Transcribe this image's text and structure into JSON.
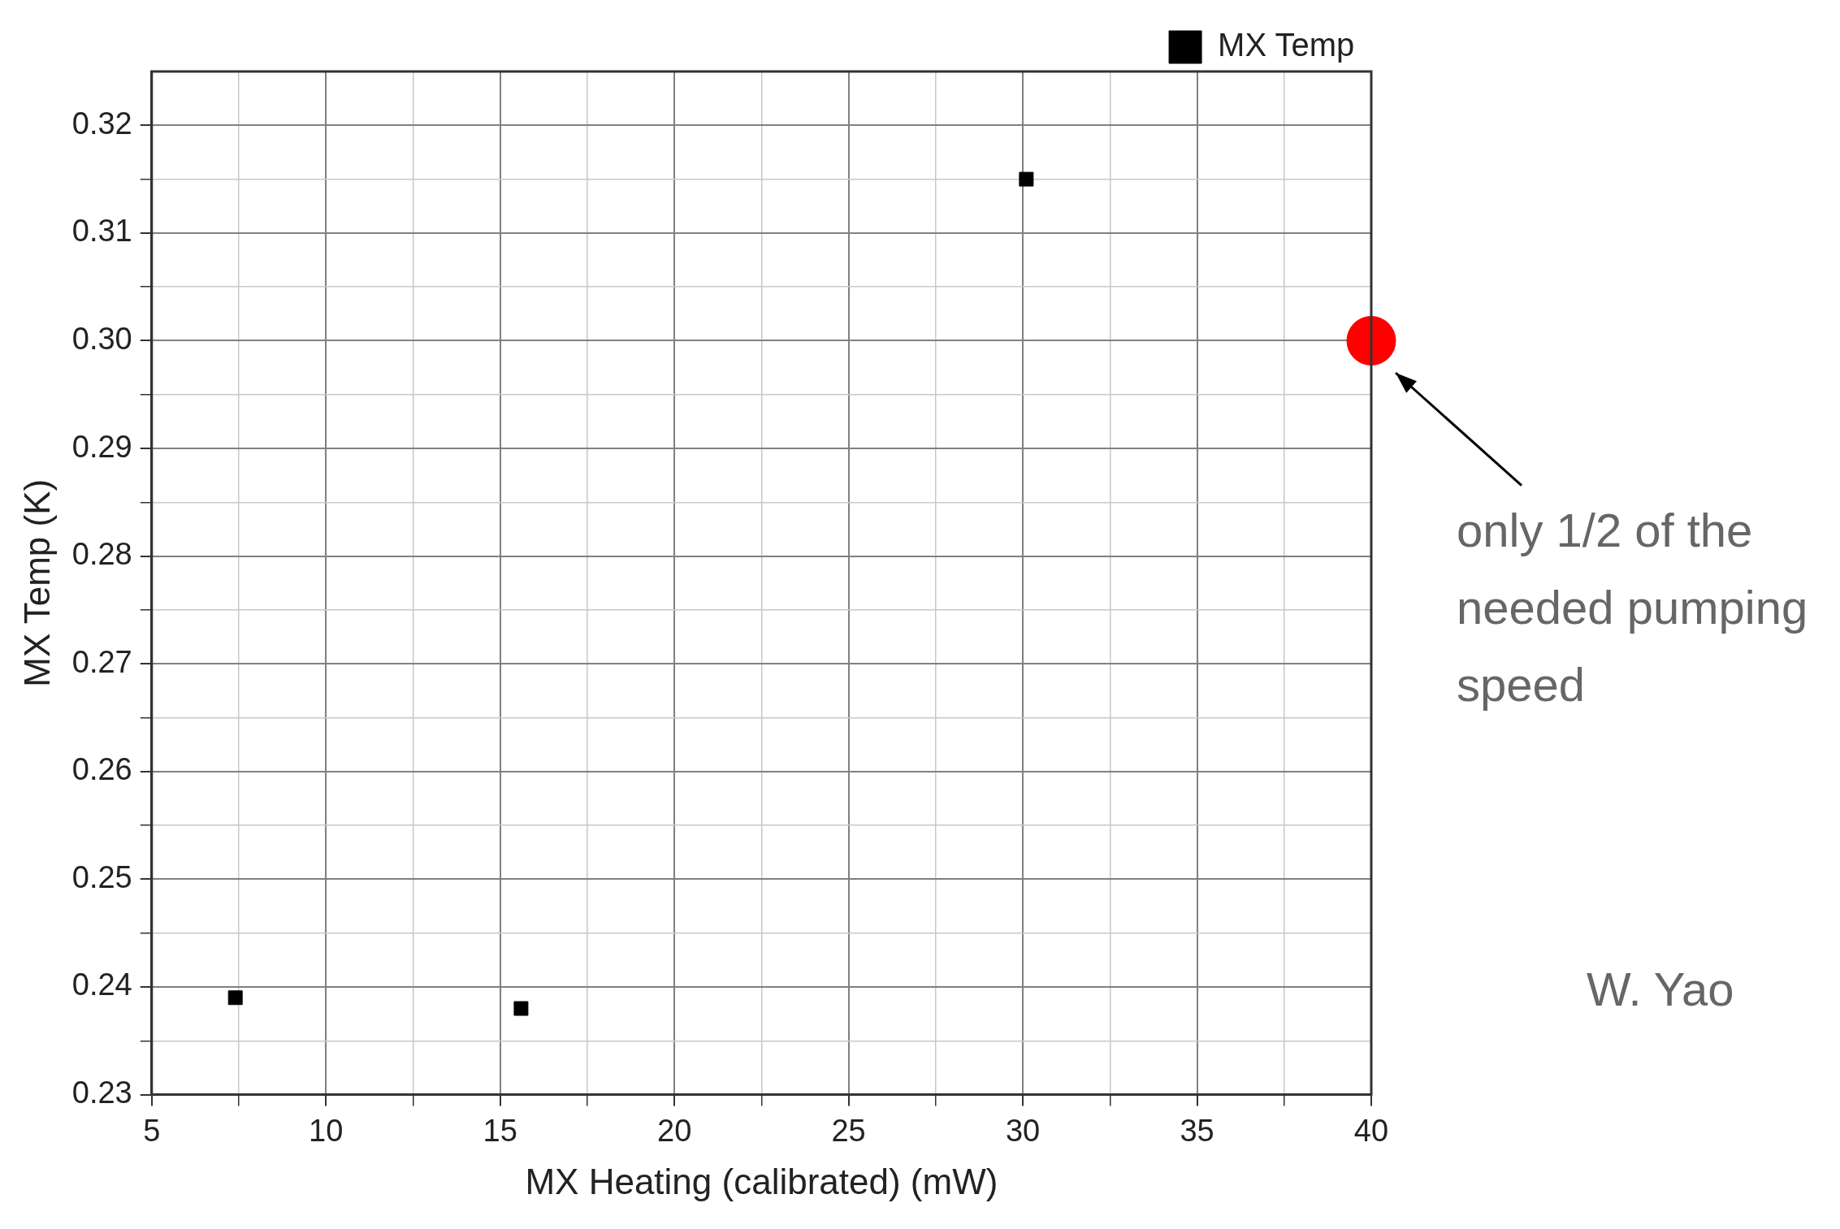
{
  "chart_data": {
    "type": "scatter",
    "xlabel": "MX Heating (calibrated) (mW)",
    "ylabel": "MX Temp (K)",
    "xlim": [
      5,
      40
    ],
    "xticks": [
      5,
      {
        "value": 7.5,
        "label": null
      },
      10,
      {
        "value": 12.5,
        "label": null
      },
      15,
      {
        "value": 17.5,
        "label": null
      },
      20,
      {
        "value": 22.5,
        "label": null
      },
      25,
      {
        "value": 27.5,
        "label": null
      },
      30,
      {
        "value": 32.5,
        "label": null
      },
      35,
      {
        "value": 37.5,
        "label": null
      },
      40
    ],
    "ylim": [
      0.23,
      0.325
    ],
    "yticks": [
      {
        "value": 0.23,
        "label": "0.23"
      },
      {
        "value": 0.235,
        "label": null
      },
      {
        "value": 0.24,
        "label": "0.24"
      },
      {
        "value": 0.245,
        "label": null
      },
      {
        "value": 0.25,
        "label": "0.25"
      },
      {
        "value": 0.255,
        "label": null
      },
      {
        "value": 0.26,
        "label": "0.26"
      },
      {
        "value": 0.265,
        "label": null
      },
      {
        "value": 0.27,
        "label": "0.27"
      },
      {
        "value": 0.275,
        "label": null
      },
      {
        "value": 0.28,
        "label": "0.28"
      },
      {
        "value": 0.285,
        "label": null
      },
      {
        "value": 0.29,
        "label": "0.29"
      },
      {
        "value": 0.295,
        "label": null
      },
      {
        "value": 0.3,
        "label": "0.30"
      },
      {
        "value": 0.305,
        "label": null
      },
      {
        "value": 0.31,
        "label": "0.31"
      },
      {
        "value": 0.315,
        "label": null
      },
      {
        "value": 0.32,
        "label": "0.32"
      }
    ],
    "grid": true,
    "legend": "top right",
    "series": [
      {
        "name": "MX Temp",
        "color": "#000000",
        "marker": "square",
        "x": [
          7.4,
          15.6,
          30.1
        ],
        "values": [
          0.239,
          0.238,
          0.315
        ]
      },
      {
        "color": "#ff0000",
        "marker": "circle",
        "x": [
          40
        ],
        "values": [
          0.3
        ]
      }
    ],
    "annotations": [
      "only 1/2 of the needed pumping speed",
      "W. Yao"
    ]
  }
}
